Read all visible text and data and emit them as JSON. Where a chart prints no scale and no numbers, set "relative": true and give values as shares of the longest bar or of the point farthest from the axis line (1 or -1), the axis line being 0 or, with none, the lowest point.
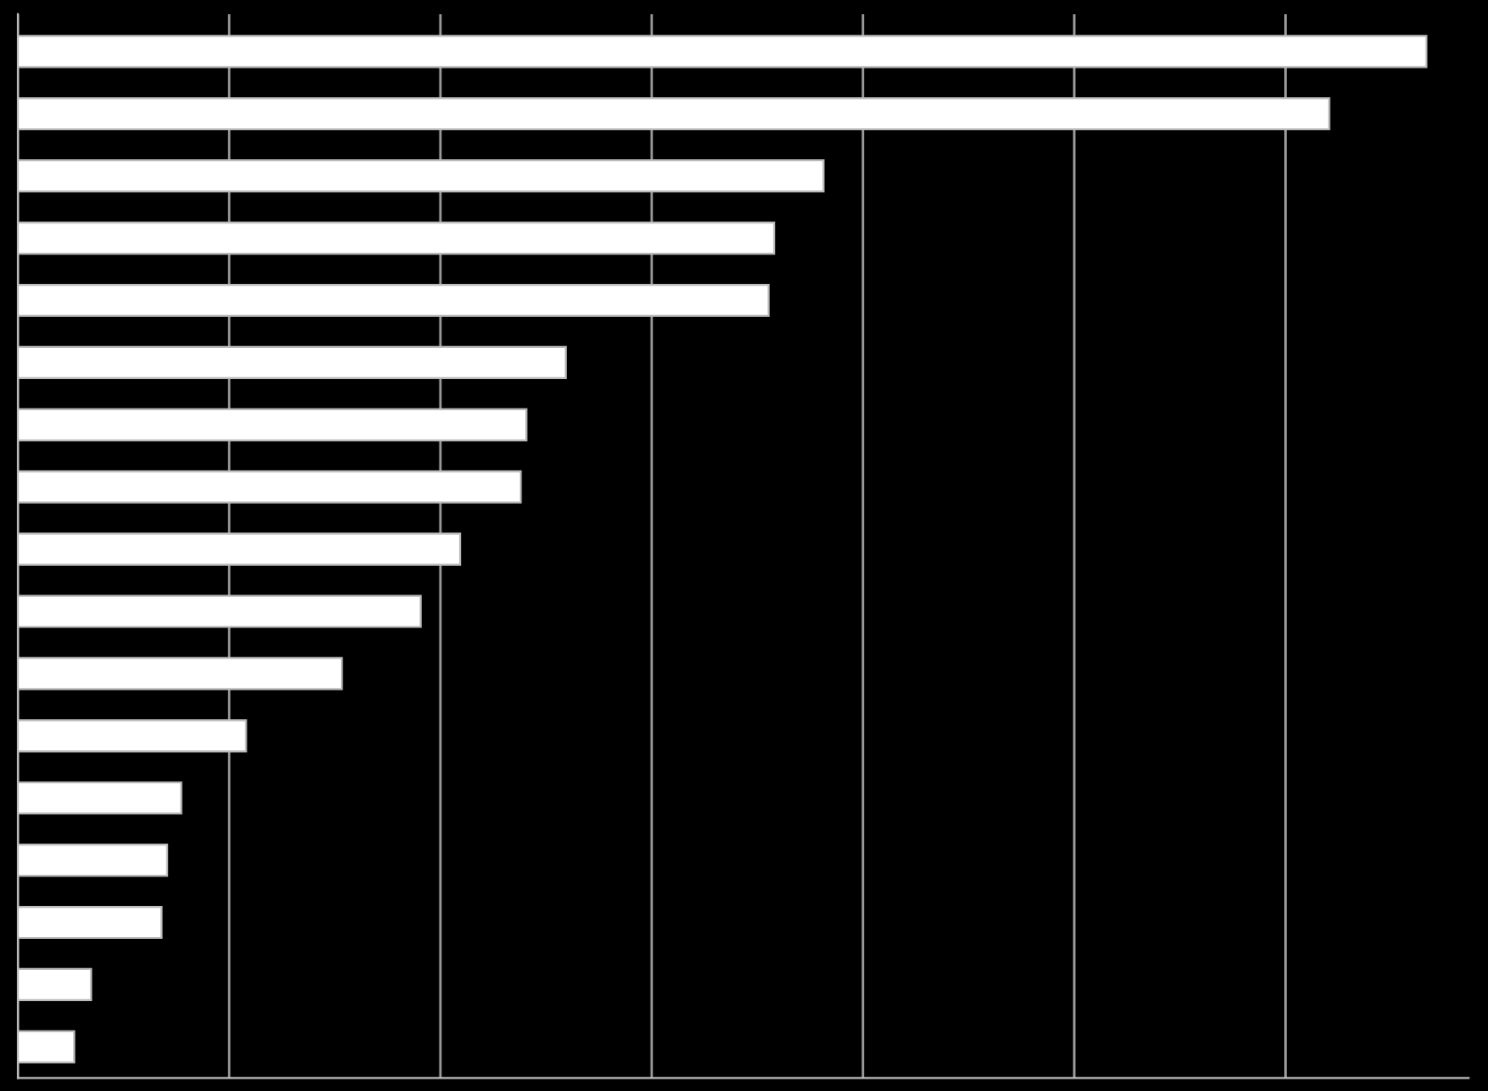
{
  "chart_data": {
    "type": "bar",
    "orientation": "horizontal",
    "relative": true,
    "grid": "x",
    "color": "#ffffff",
    "categories": [
      null,
      null,
      null,
      null,
      null,
      null,
      null,
      null,
      null,
      null,
      null,
      null,
      null,
      null,
      null,
      null,
      null
    ],
    "values": [
      1,
      0.931,
      0.572,
      0.537,
      0.533,
      0.389,
      0.361,
      0.357,
      0.314,
      0.286,
      0.23,
      0.162,
      0.116,
      0.106,
      0.102,
      0.052,
      0.04
    ]
  }
}
